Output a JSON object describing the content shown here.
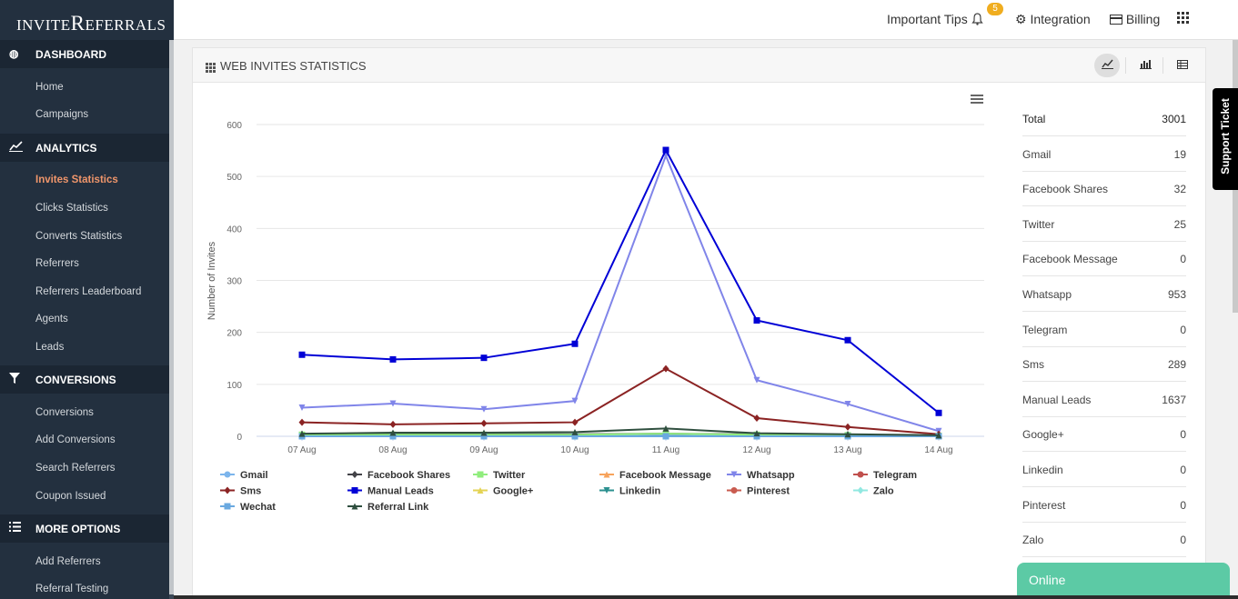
{
  "brand": {
    "logo_pre": "INVITE",
    "logo_big": "R",
    "logo_post": "EFERRALS"
  },
  "sidebar": {
    "sections": [
      {
        "label": "DASHBOARD",
        "icon": "dashboard-icon",
        "items": [
          "Home",
          "Campaigns"
        ]
      },
      {
        "label": "ANALYTICS",
        "icon": "chart-line-icon",
        "items": [
          "Invites Statistics",
          "Clicks Statistics",
          "Converts Statistics",
          "Referrers",
          "Referrers Leaderboard",
          "Agents",
          "Leads"
        ]
      },
      {
        "label": "CONVERSIONS",
        "icon": "filter-icon",
        "items": [
          "Conversions",
          "Add Conversions",
          "Search Referrers",
          "Coupon Issued"
        ]
      },
      {
        "label": "MORE OPTIONS",
        "icon": "list-icon",
        "items": [
          "Add Referrers",
          "Referral Testing"
        ]
      }
    ],
    "active_item": "Invites Statistics"
  },
  "topbar": {
    "tips_label": "Important Tips",
    "tips_count": "5",
    "integration_label": "Integration",
    "billing_label": "Billing"
  },
  "panel": {
    "title": "WEB INVITES STATISTICS"
  },
  "stats": [
    {
      "label": "Total",
      "value": "3001"
    },
    {
      "label": "Gmail",
      "value": "19"
    },
    {
      "label": "Facebook Shares",
      "value": "32"
    },
    {
      "label": "Twitter",
      "value": "25"
    },
    {
      "label": "Facebook Message",
      "value": "0"
    },
    {
      "label": "Whatsapp",
      "value": "953"
    },
    {
      "label": "Telegram",
      "value": "0"
    },
    {
      "label": "Sms",
      "value": "289"
    },
    {
      "label": "Manual Leads",
      "value": "1637"
    },
    {
      "label": "Google+",
      "value": "0"
    },
    {
      "label": "Linkedin",
      "value": "0"
    },
    {
      "label": "Pinterest",
      "value": "0"
    },
    {
      "label": "Zalo",
      "value": "0"
    }
  ],
  "support_label": "Support Ticket",
  "online_label": "Online",
  "chart_data": {
    "type": "line",
    "title": "",
    "xlabel": "",
    "ylabel": "Number of Invites",
    "categories": [
      "07 Aug",
      "08 Aug",
      "09 Aug",
      "10 Aug",
      "11 Aug",
      "12 Aug",
      "13 Aug",
      "14 Aug"
    ],
    "ylim": [
      0,
      600
    ],
    "yticks": [
      0,
      100,
      200,
      300,
      400,
      500,
      600
    ],
    "grid": true,
    "legend": "bottom",
    "series": [
      {
        "name": "Gmail",
        "color": "#7cb5ec",
        "marker": "circle",
        "values": [
          2,
          2,
          2,
          2,
          2,
          3,
          3,
          1
        ]
      },
      {
        "name": "Facebook Shares",
        "color": "#434348",
        "marker": "diamond",
        "values": [
          4,
          5,
          4,
          4,
          5,
          4,
          3,
          1
        ]
      },
      {
        "name": "Twitter",
        "color": "#90ed7d",
        "marker": "square",
        "values": [
          3,
          3,
          3,
          3,
          5,
          3,
          2,
          1
        ]
      },
      {
        "name": "Facebook Message",
        "color": "#f7a35c",
        "marker": "triangle",
        "values": [
          0,
          0,
          0,
          0,
          0,
          0,
          0,
          0
        ]
      },
      {
        "name": "Whatsapp",
        "color": "#8085e9",
        "marker": "triangle-down",
        "values": [
          55,
          63,
          52,
          68,
          540,
          108,
          62,
          10
        ]
      },
      {
        "name": "Telegram",
        "color": "#c0504d",
        "marker": "circle",
        "values": [
          0,
          0,
          0,
          0,
          0,
          0,
          0,
          0
        ]
      },
      {
        "name": "Sms",
        "color": "#8b2323",
        "marker": "diamond",
        "values": [
          27,
          23,
          25,
          27,
          130,
          35,
          18,
          4
        ]
      },
      {
        "name": "Manual Leads",
        "color": "#0000d6",
        "marker": "square",
        "values": [
          157,
          148,
          151,
          178,
          551,
          223,
          185,
          45
        ]
      },
      {
        "name": "Google+",
        "color": "#e4d354",
        "marker": "triangle",
        "values": [
          0,
          0,
          0,
          0,
          0,
          0,
          0,
          0
        ]
      },
      {
        "name": "Linkedin",
        "color": "#2b908f",
        "marker": "triangle-down",
        "values": [
          0,
          0,
          0,
          0,
          0,
          0,
          0,
          0
        ]
      },
      {
        "name": "Pinterest",
        "color": "#c95b4f",
        "marker": "circle",
        "values": [
          0,
          0,
          0,
          0,
          0,
          0,
          0,
          0
        ]
      },
      {
        "name": "Zalo",
        "color": "#91e8e1",
        "marker": "diamond",
        "values": [
          0,
          0,
          0,
          0,
          0,
          0,
          0,
          0
        ]
      },
      {
        "name": "Wechat",
        "color": "#6aa9e0",
        "marker": "square",
        "values": [
          0,
          0,
          0,
          0,
          0,
          0,
          0,
          0
        ]
      },
      {
        "name": "Referral Link",
        "color": "#2f4f3f",
        "marker": "triangle",
        "values": [
          5,
          7,
          7,
          8,
          15,
          6,
          4,
          2
        ]
      }
    ]
  }
}
